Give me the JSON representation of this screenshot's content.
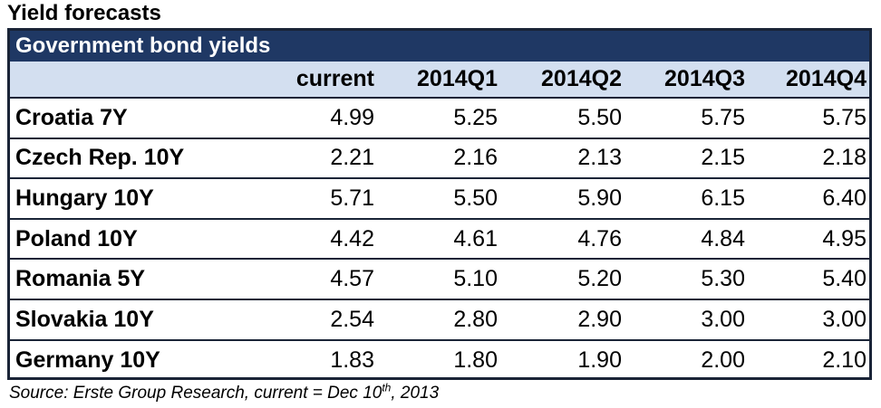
{
  "title": "Yield forecasts",
  "table": {
    "banner": "Government bond yields",
    "columns": [
      "",
      "current",
      "2014Q1",
      "2014Q2",
      "2014Q3",
      "2014Q4"
    ],
    "rows": [
      {
        "label": "Croatia 7Y",
        "values": [
          "4.99",
          "5.25",
          "5.50",
          "5.75",
          "5.75"
        ]
      },
      {
        "label": "Czech Rep. 10Y",
        "values": [
          "2.21",
          "2.16",
          "2.13",
          "2.15",
          "2.18"
        ]
      },
      {
        "label": "Hungary 10Y",
        "values": [
          "5.71",
          "5.50",
          "5.90",
          "6.15",
          "6.40"
        ]
      },
      {
        "label": "Poland 10Y",
        "values": [
          "4.42",
          "4.61",
          "4.76",
          "4.84",
          "4.95"
        ]
      },
      {
        "label": "Romania 5Y",
        "values": [
          "4.57",
          "5.10",
          "5.20",
          "5.30",
          "5.40"
        ]
      },
      {
        "label": "Slovakia 10Y",
        "values": [
          "2.54",
          "2.80",
          "2.90",
          "3.00",
          "3.00"
        ]
      },
      {
        "label": "Germany 10Y",
        "values": [
          "1.83",
          "1.80",
          "1.90",
          "2.00",
          "2.10"
        ]
      }
    ]
  },
  "source": {
    "prefix": "Source: Erste Group Research, current = Dec 10",
    "superscript": "th",
    "suffix": ", 2013"
  },
  "colors": {
    "banner_bg": "#1f3864",
    "header_bg": "#d3dff0",
    "border": "#1a2437"
  }
}
